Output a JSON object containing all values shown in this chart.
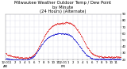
{
  "title": "Milwaukee Weather Outdoor Temp / Dew Point\nby Minute\n(24 Hours) (Alternate)",
  "title_fontsize": 3.8,
  "bg_color": "#ffffff",
  "plot_bg_color": "#ffffff",
  "grid_color": "#aaaacc",
  "red_color": "#dd0000",
  "blue_color": "#0000cc",
  "tick_fontsize": 2.8,
  "ylim": [
    20,
    90
  ],
  "yticks": [
    20,
    30,
    40,
    50,
    60,
    70,
    80,
    90
  ],
  "ytick_labels": [
    "20",
    "30",
    "40",
    "50",
    "60",
    "70",
    "80",
    "90"
  ],
  "temp_curve": [
    30,
    29,
    28,
    27,
    27,
    26,
    26,
    25,
    25,
    25,
    24,
    24,
    24,
    24,
    23,
    23,
    23,
    23,
    23,
    23,
    23,
    23,
    23,
    23,
    23,
    24,
    24,
    25,
    26,
    27,
    29,
    31,
    33,
    36,
    38,
    41,
    44,
    47,
    50,
    53,
    56,
    58,
    61,
    63,
    65,
    67,
    68,
    70,
    71,
    72,
    73,
    74,
    74,
    75,
    75,
    75,
    75,
    76,
    76,
    76,
    76,
    76,
    77,
    77,
    77,
    77,
    76,
    76,
    75,
    74,
    73,
    72,
    70,
    68,
    66,
    64,
    62,
    60,
    57,
    54,
    52,
    49,
    46,
    43,
    40,
    38,
    36,
    34,
    32,
    30,
    29,
    28,
    27,
    27,
    26,
    26,
    25,
    25,
    25,
    25,
    24,
    24,
    24,
    24,
    24,
    24,
    24,
    24,
    24,
    24,
    24,
    24,
    24,
    24,
    24,
    24,
    24,
    24,
    24,
    24
  ],
  "dew_curve": [
    22,
    22,
    21,
    21,
    21,
    20,
    20,
    20,
    20,
    20,
    20,
    20,
    20,
    20,
    20,
    20,
    20,
    20,
    20,
    20,
    20,
    20,
    20,
    21,
    21,
    22,
    22,
    23,
    24,
    25,
    27,
    29,
    31,
    33,
    35,
    37,
    40,
    42,
    44,
    46,
    48,
    50,
    52,
    53,
    54,
    55,
    56,
    57,
    57,
    58,
    58,
    59,
    59,
    60,
    60,
    60,
    60,
    60,
    60,
    60,
    60,
    60,
    60,
    60,
    59,
    59,
    58,
    57,
    56,
    55,
    53,
    51,
    50,
    48,
    46,
    44,
    42,
    40,
    38,
    36,
    34,
    32,
    30,
    28,
    27,
    26,
    25,
    24,
    23,
    22,
    22,
    21,
    21,
    21,
    21,
    21,
    21,
    21,
    21,
    21,
    21,
    21,
    21,
    21,
    21,
    21,
    21,
    21,
    21,
    21,
    21,
    21,
    21,
    21,
    21,
    21,
    21,
    21,
    21,
    21
  ]
}
